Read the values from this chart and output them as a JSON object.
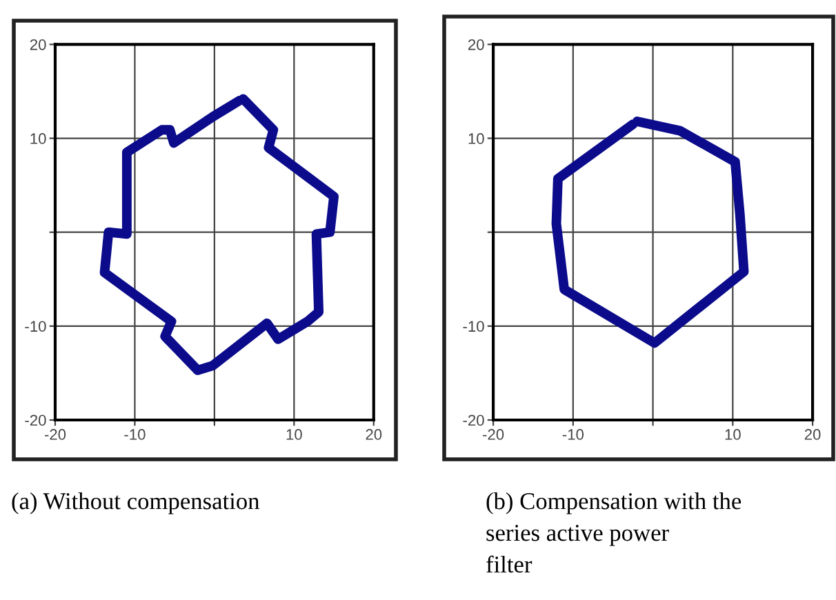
{
  "chart_data": [
    {
      "type": "line",
      "xlim": [
        -20,
        20
      ],
      "ylim": [
        -20,
        20
      ],
      "xticks": [
        -20,
        -10,
        {
          "value": 0,
          "label": null
        },
        10,
        20
      ],
      "yticks": [
        -20,
        -10,
        {
          "value": 0,
          "label": null
        },
        10,
        20
      ],
      "grid": true,
      "marker": "none",
      "line_style": "solid",
      "annotations": [
        "(a) Without compensation"
      ],
      "series": [
        {
          "color": "#0b0b8c",
          "x": [
            3.6,
            7.4,
            6.8,
            15.0,
            14.5,
            12.8,
            13.1,
            11.7,
            8.0,
            6.6,
            -0.2,
            -2.1,
            -6.2,
            -5.4,
            -13.8,
            -13.3,
            -11.0,
            -11.0,
            -6.6,
            -5.6,
            -5.1,
            -0.2,
            3.1
          ],
          "values": [
            14.2,
            10.9,
            9.0,
            3.8,
            0,
            -0.2,
            -8.5,
            -9.5,
            -11.4,
            -9.7,
            -14.2,
            -14.7,
            -11.1,
            -9.5,
            -4.3,
            0,
            -0.2,
            8.5,
            10.9,
            10.9,
            9.5,
            12.3,
            14.0
          ]
        }
      ]
    },
    {
      "type": "line",
      "xlim": [
        -20,
        20
      ],
      "ylim": [
        -20,
        20
      ],
      "xticks": [
        -20,
        -10,
        {
          "value": 0,
          "label": null
        },
        10,
        20
      ],
      "yticks": [
        -20,
        -10,
        {
          "value": 0,
          "label": null
        },
        10,
        20
      ],
      "grid": true,
      "marker": "none",
      "line_style": "solid",
      "annotations": [
        "(b) Compensation with the\nseries active power\nfilter"
      ],
      "series": [
        {
          "color": "#0b0b8c",
          "x": [
            -1.98,
            3.4,
            10.3,
            10.9,
            11.4,
            0.2,
            -11.1,
            -12.1,
            -11.9,
            -2.5
          ],
          "values": [
            11.8,
            10.8,
            7.5,
            1.9,
            -4.2,
            -11.8,
            -6.1,
            0.9,
            5.7,
            11.5
          ]
        }
      ]
    }
  ]
}
